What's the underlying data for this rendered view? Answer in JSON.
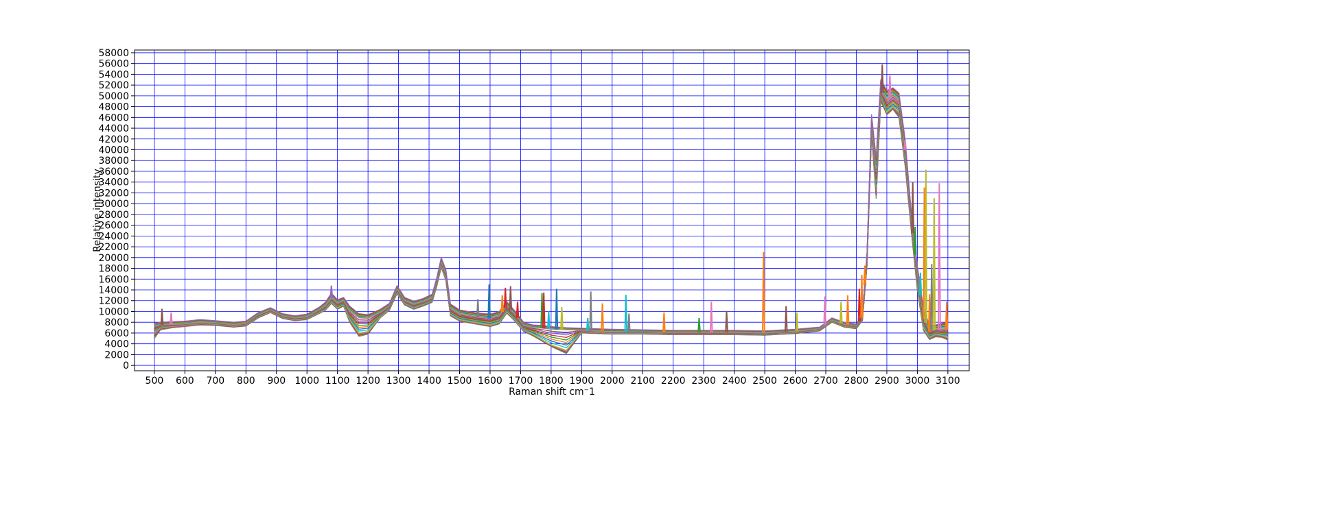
{
  "chart_data": {
    "type": "line",
    "title": "",
    "xlabel": "Raman shift cm⁻1",
    "ylabel": "Relative intensity",
    "xlim": [
      435,
      3170
    ],
    "ylim": [
      -1000,
      58500
    ],
    "x_ticks": [
      500,
      600,
      700,
      800,
      900,
      1000,
      1100,
      1200,
      1300,
      1400,
      1500,
      1600,
      1700,
      1800,
      1900,
      2000,
      2100,
      2200,
      2300,
      2400,
      2500,
      2600,
      2700,
      2800,
      2900,
      3000,
      3100
    ],
    "y_ticks": [
      0,
      2000,
      4000,
      6000,
      8000,
      10000,
      12000,
      14000,
      16000,
      18000,
      20000,
      22000,
      24000,
      26000,
      28000,
      30000,
      32000,
      34000,
      36000,
      38000,
      40000,
      42000,
      44000,
      46000,
      48000,
      50000,
      52000,
      54000,
      56000,
      58000
    ],
    "grid": true,
    "grid_color": "#0000ff",
    "legend": "none",
    "series_colors": [
      "#1f77b4",
      "#ff7f0e",
      "#2ca02c",
      "#d62728",
      "#9467bd",
      "#8c564b",
      "#e377c2",
      "#7f7f7f",
      "#bcbd22",
      "#17becf"
    ],
    "series": [
      {
        "x": [
          500,
          520,
          560,
          600,
          650,
          700,
          760,
          800,
          840,
          880,
          920,
          960,
          1000,
          1040,
          1060,
          1080,
          1100,
          1120,
          1140,
          1170,
          1200,
          1240,
          1270,
          1295,
          1320,
          1350,
          1380,
          1410,
          1425,
          1440,
          1455,
          1470,
          1500,
          1550,
          1600,
          1630,
          1655,
          1680,
          1710,
          1740,
          1770,
          1800,
          1850,
          1900,
          2000,
          2100,
          2200,
          2300,
          2400,
          2500,
          2600,
          2680,
          2720,
          2760,
          2800,
          2820,
          2835,
          2850,
          2865,
          2880,
          2900,
          2920,
          2940,
          2960,
          2980,
          3000,
          3020,
          3040,
          3060,
          3080,
          3100
        ],
        "y": [
          7200,
          7500,
          7600,
          7700,
          8000,
          7900,
          7500,
          7800,
          9400,
          10300,
          9200,
          8800,
          9000,
          10300,
          11000,
          12500,
          11500,
          12000,
          10000,
          8800,
          8700,
          9800,
          11000,
          14200,
          12000,
          11300,
          11800,
          12500,
          15500,
          19200,
          17000,
          10500,
          9500,
          9000,
          8700,
          9200,
          11000,
          9500,
          7400,
          7000,
          6900,
          6700,
          6600,
          6500,
          6200,
          6200,
          6100,
          6100,
          6100,
          6000,
          6300,
          6800,
          8400,
          7600,
          7300,
          9000,
          20000,
          45000,
          36000,
          51000,
          49000,
          50000,
          49000,
          40000,
          27000,
          17000,
          9000,
          6300,
          6600,
          6500,
          6700
        ]
      },
      {
        "x": [
          500,
          520,
          560,
          600,
          650,
          700,
          760,
          800,
          840,
          880,
          920,
          960,
          1000,
          1040,
          1060,
          1080,
          1100,
          1120,
          1140,
          1170,
          1200,
          1240,
          1270,
          1295,
          1320,
          1350,
          1380,
          1410,
          1425,
          1440,
          1455,
          1470,
          1500,
          1550,
          1600,
          1630,
          1655,
          1680,
          1710,
          1740,
          1770,
          1800,
          1850,
          1900,
          2000,
          2100,
          2200,
          2300,
          2400,
          2500,
          2600,
          2680,
          2720,
          2760,
          2800,
          2820,
          2835,
          2850,
          2865,
          2880,
          2900,
          2920,
          2940,
          2960,
          2980,
          3000,
          3020,
          3040,
          3060,
          3080,
          3100
        ],
        "y": [
          6200,
          7000,
          7300,
          7500,
          7800,
          7700,
          7300,
          7500,
          9000,
          10000,
          8900,
          8500,
          8700,
          9800,
          10400,
          11800,
          10700,
          11300,
          8600,
          6000,
          6300,
          9000,
          10500,
          13600,
          11500,
          10700,
          11300,
          12000,
          15000,
          18600,
          16200,
          9500,
          8500,
          8000,
          7500,
          8000,
          10000,
          8600,
          6600,
          5800,
          4800,
          3800,
          2800,
          6300,
          6000,
          6000,
          5900,
          5900,
          5900,
          5800,
          6100,
          6600,
          8200,
          7300,
          7000,
          8600,
          19000,
          44000,
          33000,
          50000,
          47000,
          48000,
          47000,
          38000,
          26000,
          15000,
          7000,
          5200,
          5800,
          5600,
          5200
        ]
      },
      {
        "x": [
          500,
          520,
          560,
          600,
          650,
          700,
          760,
          800,
          840,
          880,
          920,
          960,
          1000,
          1040,
          1060,
          1080,
          1100,
          1120,
          1140,
          1170,
          1200,
          1240,
          1270,
          1295,
          1320,
          1350,
          1380,
          1410,
          1425,
          1440,
          1455,
          1470,
          1500,
          1550,
          1600,
          1630,
          1655,
          1680,
          1710,
          1740,
          1770,
          1800,
          1850,
          1900,
          2000,
          2100,
          2200,
          2300,
          2400,
          2500,
          2600,
          2680,
          2720,
          2760,
          2800,
          2820,
          2835,
          2850,
          2865,
          2880,
          2900,
          2920,
          2940,
          2960,
          2980,
          3000,
          3020,
          3040,
          3060,
          3080,
          3100
        ],
        "y": [
          7800,
          8000,
          8100,
          8200,
          8500,
          8300,
          8000,
          8200,
          9800,
          10700,
          9600,
          9200,
          9500,
          10800,
          11700,
          13400,
          12200,
          12600,
          11000,
          9600,
          9400,
          10400,
          11500,
          14800,
          12600,
          11900,
          12400,
          13200,
          16200,
          20000,
          17800,
          11400,
          10300,
          9800,
          9500,
          10000,
          11800,
          10200,
          8000,
          7500,
          7400,
          7200,
          7000,
          6900,
          6700,
          6600,
          6500,
          6500,
          6500,
          6400,
          6700,
          7100,
          8800,
          8000,
          7700,
          9500,
          21000,
          46500,
          38500,
          53000,
          51000,
          51500,
          50500,
          42000,
          28500,
          18500,
          10500,
          7500,
          7500,
          7800,
          8000
        ]
      },
      {
        "x": [
          500,
          520,
          560,
          600,
          650,
          700,
          760,
          800,
          840,
          880,
          920,
          960,
          1000,
          1040,
          1060,
          1080,
          1100,
          1120,
          1140,
          1170,
          1200,
          1240,
          1270,
          1295,
          1320,
          1350,
          1380,
          1410,
          1425,
          1440,
          1455,
          1470,
          1500,
          1550,
          1600,
          1630,
          1655,
          1680,
          1710,
          1740,
          1770,
          1800,
          1850,
          1900,
          2000,
          2100,
          2200,
          2300,
          2400,
          2500,
          2600,
          2680,
          2720,
          2760,
          2800,
          2820,
          2835,
          2850,
          2865,
          2880,
          2900,
          2920,
          2940,
          2960,
          2980,
          3000,
          3020,
          3040,
          3060,
          3080,
          3100
        ],
        "y": [
          5000,
          6600,
          7000,
          7200,
          7500,
          7400,
          7100,
          7300,
          8800,
          9800,
          8700,
          8300,
          8500,
          9600,
          10200,
          11500,
          10400,
          11000,
          8000,
          5400,
          5800,
          8800,
          10200,
          13300,
          11200,
          10400,
          11000,
          11700,
          14600,
          18200,
          15800,
          9200,
          8200,
          7700,
          7200,
          7700,
          9700,
          8300,
          6300,
          5500,
          4500,
          3500,
          2200,
          6000,
          5800,
          5800,
          5700,
          5700,
          5700,
          5600,
          5900,
          6400,
          8000,
          7100,
          6800,
          8300,
          18500,
          43000,
          31000,
          49000,
          46500,
          47500,
          46000,
          37000,
          25000,
          14000,
          6500,
          4800,
          5300,
          5200,
          4700
        ]
      }
    ],
    "spikes": [
      {
        "x": 525,
        "y": 10500,
        "color": "#8c564b"
      },
      {
        "x": 555,
        "y": 9800,
        "color": "#e377c2"
      },
      {
        "x": 1080,
        "y": 14800,
        "color": "#9467bd"
      },
      {
        "x": 1560,
        "y": 12300,
        "color": "#7f7f7f"
      },
      {
        "x": 1597,
        "y": 15000,
        "color": "#1f77b4"
      },
      {
        "x": 1640,
        "y": 13000,
        "color": "#ff7f0e"
      },
      {
        "x": 1650,
        "y": 14400,
        "color": "#d62728"
      },
      {
        "x": 1667,
        "y": 14700,
        "color": "#8c564b"
      },
      {
        "x": 1690,
        "y": 11800,
        "color": "#d62728"
      },
      {
        "x": 1770,
        "y": 13400,
        "color": "#2ca02c"
      },
      {
        "x": 1776,
        "y": 13500,
        "color": "#d62728"
      },
      {
        "x": 1792,
        "y": 10000,
        "color": "#17becf"
      },
      {
        "x": 1818,
        "y": 14200,
        "color": "#1f77b4"
      },
      {
        "x": 1835,
        "y": 10800,
        "color": "#bcbd22"
      },
      {
        "x": 1920,
        "y": 8800,
        "color": "#17becf"
      },
      {
        "x": 1930,
        "y": 13700,
        "color": "#7f7f7f"
      },
      {
        "x": 1968,
        "y": 11500,
        "color": "#ff7f0e"
      },
      {
        "x": 2045,
        "y": 13100,
        "color": "#17becf"
      },
      {
        "x": 2055,
        "y": 9600,
        "color": "#7f7f7f"
      },
      {
        "x": 2170,
        "y": 9800,
        "color": "#ff7f0e"
      },
      {
        "x": 2285,
        "y": 8800,
        "color": "#2ca02c"
      },
      {
        "x": 2325,
        "y": 11800,
        "color": "#e377c2"
      },
      {
        "x": 2375,
        "y": 10100,
        "color": "#8c564b"
      },
      {
        "x": 2496,
        "y": 21000,
        "color": "#ff7f0e"
      },
      {
        "x": 2570,
        "y": 11000,
        "color": "#8c564b"
      },
      {
        "x": 2605,
        "y": 9800,
        "color": "#bcbd22"
      },
      {
        "x": 2697,
        "y": 12800,
        "color": "#e377c2"
      },
      {
        "x": 2750,
        "y": 11800,
        "color": "#bcbd22"
      },
      {
        "x": 2772,
        "y": 13000,
        "color": "#ff7f0e"
      },
      {
        "x": 2810,
        "y": 14200,
        "color": "#d62728"
      },
      {
        "x": 2818,
        "y": 16800,
        "color": "#ff7f0e"
      },
      {
        "x": 2828,
        "y": 18500,
        "color": "#ff7f0e"
      },
      {
        "x": 2885,
        "y": 55800,
        "color": "#8c564b"
      },
      {
        "x": 2910,
        "y": 53800,
        "color": "#e377c2"
      },
      {
        "x": 2960,
        "y": 41800,
        "color": "#e377c2"
      },
      {
        "x": 2985,
        "y": 34000,
        "color": "#8c564b"
      },
      {
        "x": 2993,
        "y": 25700,
        "color": "#2ca02c"
      },
      {
        "x": 3010,
        "y": 17200,
        "color": "#17becf"
      },
      {
        "x": 3023,
        "y": 33000,
        "color": "#ff7f0e"
      },
      {
        "x": 3028,
        "y": 36300,
        "color": "#bcbd22"
      },
      {
        "x": 3040,
        "y": 13200,
        "color": "#ff7f0e"
      },
      {
        "x": 3047,
        "y": 18800,
        "color": "#7f7f7f"
      },
      {
        "x": 3055,
        "y": 31000,
        "color": "#bcbd22"
      },
      {
        "x": 3072,
        "y": 33800,
        "color": "#e377c2"
      },
      {
        "x": 3096,
        "y": 11800,
        "color": "#ff7f0e"
      }
    ]
  }
}
